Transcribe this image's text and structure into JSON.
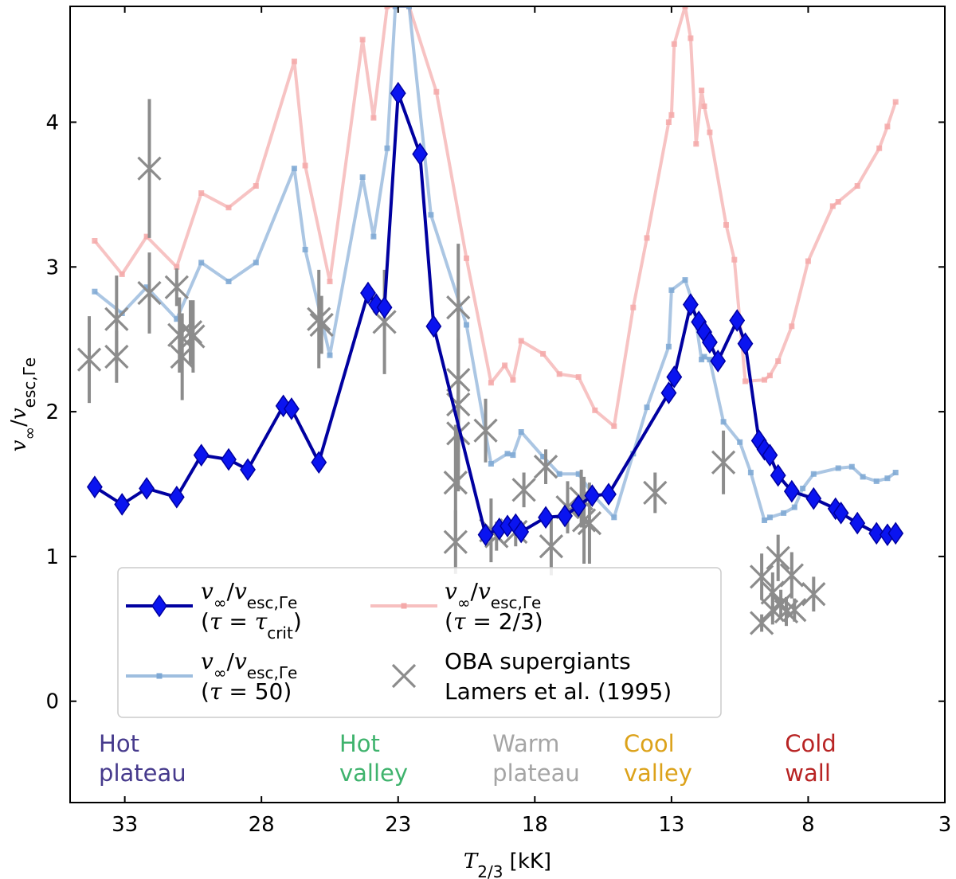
{
  "chart_data": {
    "type": "line",
    "xlabel": "T2/3 [kK]",
    "ylabel": "v∞/vesc,Γe",
    "xlim": [
      35,
      3
    ],
    "ylim": [
      -0.7,
      4.8
    ],
    "x_ticks": [
      33,
      28,
      23,
      18,
      13,
      8,
      3
    ],
    "y_ticks": [
      0,
      1,
      2,
      3,
      4
    ],
    "series": [
      {
        "name": "tau_crit",
        "legend_line1": "v∞/vesc,Γe",
        "legend_line2": "(τ = τcrit)",
        "color": "#0000a0",
        "marker_color": "#0a14f0",
        "x": [
          34.1,
          33.1,
          32.2,
          31.1,
          30.2,
          29.2,
          28.5,
          27.2,
          26.9,
          25.9,
          24.1,
          23.8,
          23.5,
          23.0,
          22.2,
          21.7,
          19.8,
          19.3,
          19.0,
          18.7,
          18.5,
          17.6,
          16.9,
          16.4,
          15.9,
          15.3,
          13.1,
          12.9,
          12.3,
          12.0,
          11.8,
          11.6,
          11.3,
          10.6,
          10.3,
          9.8,
          9.6,
          9.4,
          9.1,
          8.6,
          7.8,
          7.0,
          6.8,
          6.2,
          5.5,
          5.1,
          4.8
        ],
        "y": [
          1.48,
          1.36,
          1.47,
          1.41,
          1.7,
          1.67,
          1.6,
          2.04,
          2.02,
          1.65,
          2.82,
          2.74,
          2.72,
          4.2,
          3.78,
          2.59,
          1.15,
          1.19,
          1.21,
          1.22,
          1.17,
          1.27,
          1.28,
          1.35,
          1.42,
          1.43,
          2.13,
          2.24,
          2.74,
          2.62,
          2.55,
          2.48,
          2.35,
          2.63,
          2.47,
          1.8,
          1.74,
          1.7,
          1.56,
          1.45,
          1.4,
          1.33,
          1.3,
          1.23,
          1.16,
          1.15,
          1.16
        ]
      },
      {
        "name": "tau_50",
        "legend_line1": "v∞/vesc,Γe",
        "legend_line2": "(τ = 50)",
        "color": "#7ea8d4",
        "x": [
          34.1,
          33.1,
          32.2,
          31.1,
          30.2,
          29.2,
          28.2,
          26.8,
          26.4,
          25.5,
          24.3,
          23.9,
          23.4,
          23.1,
          22.6,
          21.8,
          20.5,
          19.6,
          19.0,
          18.8,
          18.5,
          17.7,
          17.1,
          16.4,
          15.8,
          15.1,
          14.4,
          13.9,
          13.1,
          13.0,
          12.5,
          12.2,
          11.9,
          11.8,
          11.6,
          11.1,
          10.5,
          10.1,
          9.6,
          9.4,
          8.9,
          8.5,
          8.2,
          7.8,
          6.9,
          6.4,
          6.0,
          5.5,
          5.1,
          4.8
        ],
        "y": [
          2.83,
          2.68,
          2.86,
          2.64,
          3.03,
          2.9,
          3.03,
          3.68,
          3.12,
          2.39,
          3.62,
          3.21,
          3.82,
          4.8,
          4.8,
          3.36,
          2.6,
          1.64,
          1.71,
          1.7,
          1.86,
          1.69,
          1.57,
          1.57,
          1.41,
          1.27,
          1.71,
          2.03,
          2.45,
          2.84,
          2.91,
          2.74,
          2.36,
          2.38,
          2.36,
          1.93,
          1.79,
          1.58,
          1.25,
          1.27,
          1.3,
          1.34,
          1.47,
          1.57,
          1.61,
          1.62,
          1.55,
          1.52,
          1.54,
          1.58
        ]
      },
      {
        "name": "tau_23",
        "legend_line1": "v∞/vesc,Γe",
        "legend_line2": "(τ = 2/3)",
        "color": "#f4a9a9",
        "x": [
          34.1,
          33.1,
          32.2,
          31.1,
          30.2,
          29.2,
          28.2,
          26.8,
          26.4,
          25.5,
          24.3,
          23.9,
          23.4,
          23.1,
          22.6,
          21.6,
          20.5,
          19.6,
          19.1,
          18.8,
          18.5,
          17.7,
          17.1,
          16.4,
          15.8,
          15.1,
          14.4,
          13.9,
          13.1,
          13.0,
          12.9,
          12.5,
          12.3,
          12.1,
          11.9,
          11.8,
          11.6,
          11.0,
          10.7,
          10.3,
          9.6,
          9.4,
          9.1,
          8.6,
          8.0,
          7.1,
          6.9,
          6.2,
          5.4,
          5.1,
          4.8
        ],
        "y": [
          3.18,
          2.95,
          3.21,
          3.0,
          3.51,
          3.41,
          3.56,
          4.42,
          3.7,
          2.9,
          4.57,
          4.03,
          4.8,
          4.8,
          4.8,
          4.21,
          3.06,
          2.2,
          2.32,
          2.22,
          2.49,
          2.4,
          2.26,
          2.24,
          2.01,
          1.9,
          2.72,
          3.2,
          4.0,
          4.05,
          4.54,
          4.8,
          4.58,
          3.85,
          4.22,
          4.11,
          3.93,
          3.29,
          3.05,
          2.21,
          2.22,
          2.25,
          2.35,
          2.59,
          3.04,
          3.42,
          3.45,
          3.56,
          3.82,
          3.97,
          4.14
        ]
      },
      {
        "name": "obs",
        "legend_line1": "OBA supergiants",
        "legend_line2": "Lamers et al. (1995)",
        "color": "#8c8c8c",
        "x": [
          34.3,
          33.3,
          33.3,
          32.1,
          32.1,
          31.1,
          31.0,
          30.9,
          30.6,
          30.5,
          25.9,
          25.8,
          23.5,
          20.8,
          20.8,
          20.8,
          20.8,
          20.9,
          20.9,
          19.8,
          19.6,
          19.4,
          18.7,
          18.4,
          17.6,
          17.4,
          16.8,
          16.3,
          16.2,
          16.0,
          13.6,
          11.1,
          9.7,
          9.7,
          9.3,
          9.3,
          9.1,
          9.0,
          8.8,
          8.6,
          8.5,
          7.8
        ],
        "y": [
          2.36,
          2.38,
          2.64,
          3.68,
          2.82,
          2.86,
          2.53,
          2.38,
          2.55,
          2.52,
          2.64,
          2.6,
          2.62,
          2.72,
          2.22,
          2.05,
          1.85,
          1.51,
          1.1,
          1.87,
          1.18,
          1.14,
          1.17,
          1.46,
          1.62,
          1.07,
          1.34,
          1.4,
          1.25,
          1.23,
          1.44,
          1.65,
          0.86,
          0.54,
          0.75,
          0.63,
          0.99,
          0.67,
          0.62,
          0.87,
          0.63,
          0.74
        ],
        "err": [
          0.3,
          0.18,
          0.3,
          0.48,
          0.28,
          0.13,
          0.26,
          0.3,
          0.22,
          0.25,
          0.34,
          0.2,
          0.36,
          0.44,
          0.5,
          0.46,
          0.4,
          0.4,
          0.22,
          0.22,
          0.22,
          0.1,
          0.1,
          0.12,
          0.12,
          0.2,
          0.18,
          0.2,
          0.3,
          0.28,
          0.14,
          0.22,
          0.16,
          0.06,
          0.14,
          0.1,
          0.16,
          0.1,
          0.1,
          0.16,
          0.08,
          0.12
        ]
      }
    ],
    "regions": [
      {
        "x": 32.9,
        "line1": "Hot",
        "line2": "plateau",
        "color": "#463a8c"
      },
      {
        "x": 24.1,
        "line1": "Hot",
        "line2": "valley",
        "color": "#3fb36d"
      },
      {
        "x": 18.5,
        "line1": "Warm",
        "line2": "plateau",
        "color": "#a5a5a5"
      },
      {
        "x": 13.7,
        "line1": "Cool",
        "line2": "valley",
        "color": "#dca21a"
      },
      {
        "x": 7.8,
        "line1": "Cold",
        "line2": "wall",
        "color": "#b82424"
      }
    ]
  }
}
